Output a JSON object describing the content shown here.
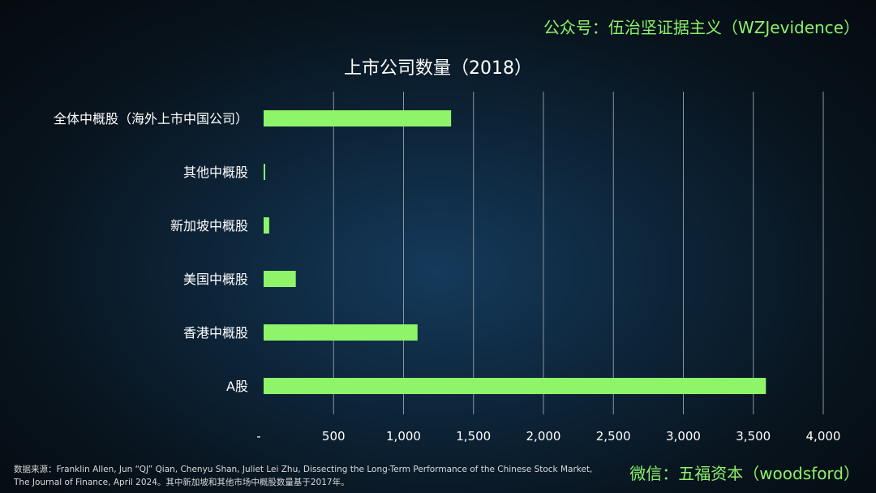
{
  "header": {
    "watermark": "公众号：伍治坚证据主义（WZJevidence）"
  },
  "chart_data": {
    "type": "bar",
    "orientation": "horizontal",
    "title": "上市公司数量（2018）",
    "categories": [
      "全体中概股（海外上市中国公司）",
      "其他中概股",
      "新加坡中概股",
      "美国中概股",
      "香港中概股",
      "A股"
    ],
    "values": [
      1340,
      10,
      40,
      230,
      1100,
      3590
    ],
    "xlim": [
      0,
      4000
    ],
    "x_ticks": [
      0,
      500,
      1000,
      1500,
      2000,
      2500,
      3000,
      3500,
      4000
    ],
    "x_tick_labels": [
      "-",
      "500",
      "1,000",
      "1,500",
      "2,000",
      "2,500",
      "3,000",
      "3,500",
      "4,000"
    ],
    "grid": "vertical",
    "legend": "none",
    "bar_color": "#8ef56b",
    "grid_color": "#8a96a0"
  },
  "footer": {
    "source_line1": "数据来源：Franklin Allen, Jun “QJ” Qian, Chenyu Shan, Juliet Lei Zhu, Dissecting the Long-Term Performance of the Chinese Stock Market,",
    "source_line2": "The Journal of Finance, April 2024。其中新加坡和其他市场中概股数量基于2017年。",
    "watermark": "微信：五福资本（woodsford）"
  }
}
